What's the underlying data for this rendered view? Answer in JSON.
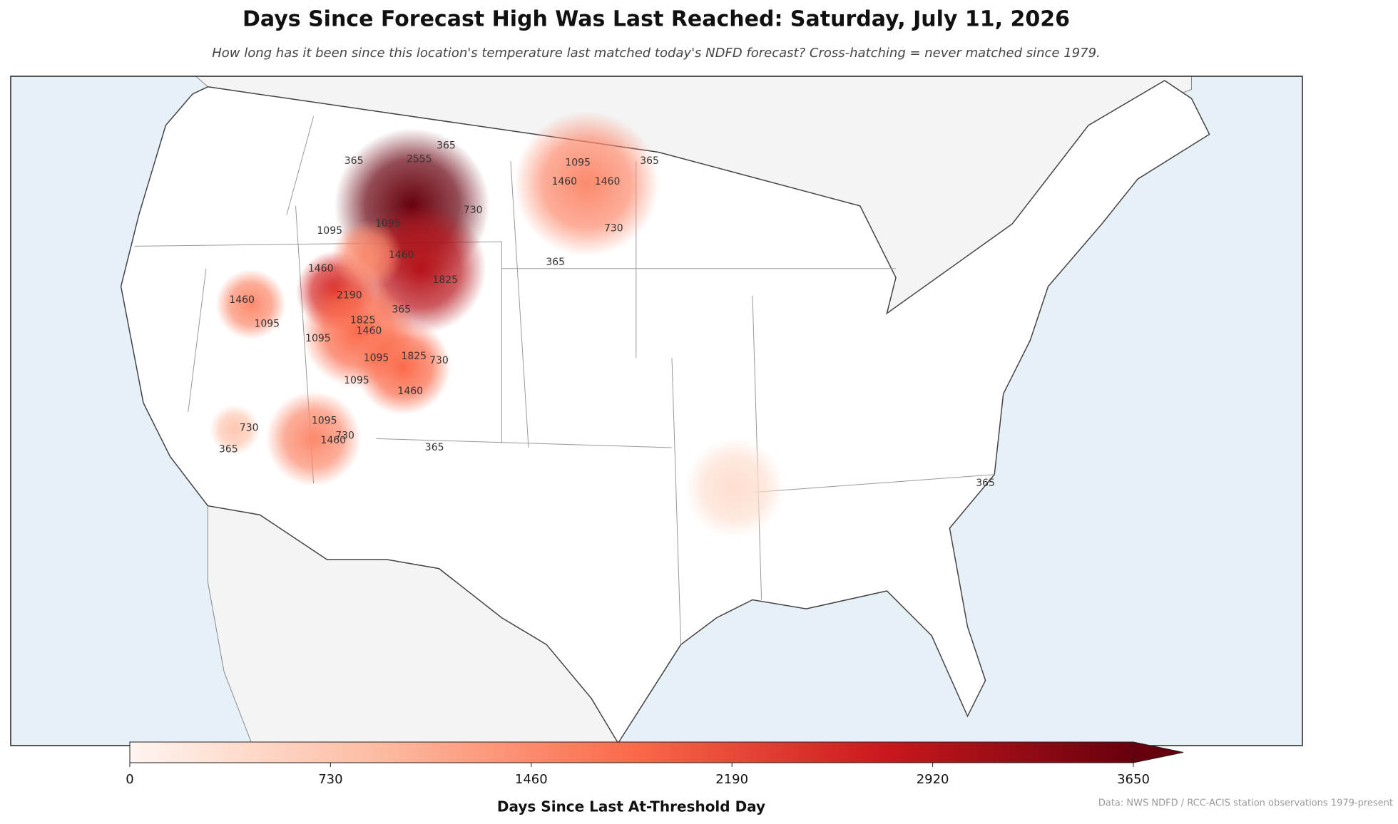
{
  "chart_data": {
    "type": "map",
    "title": "Days Since Forecast High Was Last Reached: Saturday, July 11, 2026",
    "subtitle": "How long has it been since this location's temperature last matched today's NDFD forecast? Cross-hatching = never matched since 1979.",
    "source": "Data: NWS NDFD / RCC-ACIS station observations 1979-present",
    "colorbar": {
      "label": "Days Since Last At-Threshold Day",
      "lim": [
        0,
        3650
      ],
      "ticks": [
        0,
        730,
        1460,
        2190,
        2920,
        3650
      ],
      "colors": [
        "#fff5f0",
        "#fcbba1",
        "#fb6a4a",
        "#cb181d",
        "#67000d"
      ]
    },
    "hotspots": [
      3650,
      2920,
      2555,
      1460,
      1460,
      1825,
      1460,
      730,
      1825,
      1460,
      365
    ],
    "contour_labels": [
      365,
      365,
      365,
      365,
      365,
      365,
      365,
      365,
      730,
      730,
      730,
      730,
      730,
      1095,
      1095,
      1095,
      1095,
      1095,
      1095,
      1095,
      1095,
      1460,
      1460,
      1460,
      1460,
      1460,
      1460,
      1460,
      1460,
      1825,
      1825,
      1825,
      2190,
      2555
    ]
  }
}
